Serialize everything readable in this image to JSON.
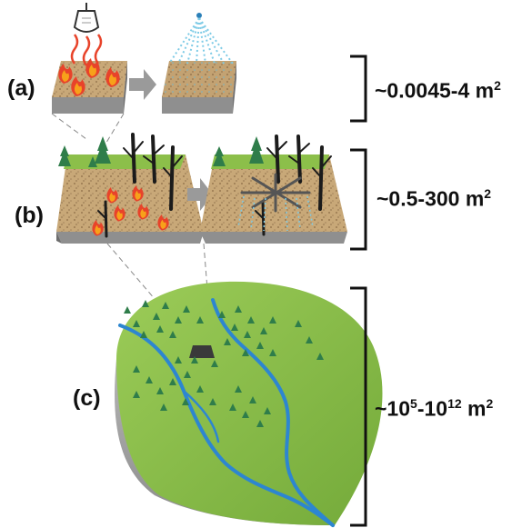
{
  "panels": {
    "a": {
      "label": "(a)",
      "scale_text": "~0.0045-4 m",
      "scale_exp": "2"
    },
    "b": {
      "label": "(b)",
      "scale_text": "~0.5-300 m",
      "scale_exp": "2"
    },
    "c": {
      "label": "(c)",
      "scale_prefix": "~10",
      "scale_exp1": "5",
      "scale_mid": "-10",
      "scale_exp2": "12",
      "scale_suffix": " m",
      "scale_exp3": "2"
    }
  },
  "colors": {
    "soil": "#c8a878",
    "soil_dark": "#8a6a44",
    "block_side": "#8f8f8f",
    "block_side_dark": "#6e6e6e",
    "arrow": "#9a9a9a",
    "fire_red": "#e8432a",
    "fire_orange": "#f7a11a",
    "water": "#7ecbe6",
    "tree_green": "#2f7d4a",
    "trunk": "#1b1b1b",
    "landscape_green": "#8cbf4a",
    "landscape_side": "#a8a8a8",
    "river": "#2d86d0"
  },
  "icons": [
    "heat-lamp-icon",
    "sprinkler-icon",
    "arrow-icon",
    "flame-icon",
    "conifer-tree-icon",
    "burned-snag-icon",
    "rainfall-simulator-icon",
    "bracket-icon"
  ]
}
